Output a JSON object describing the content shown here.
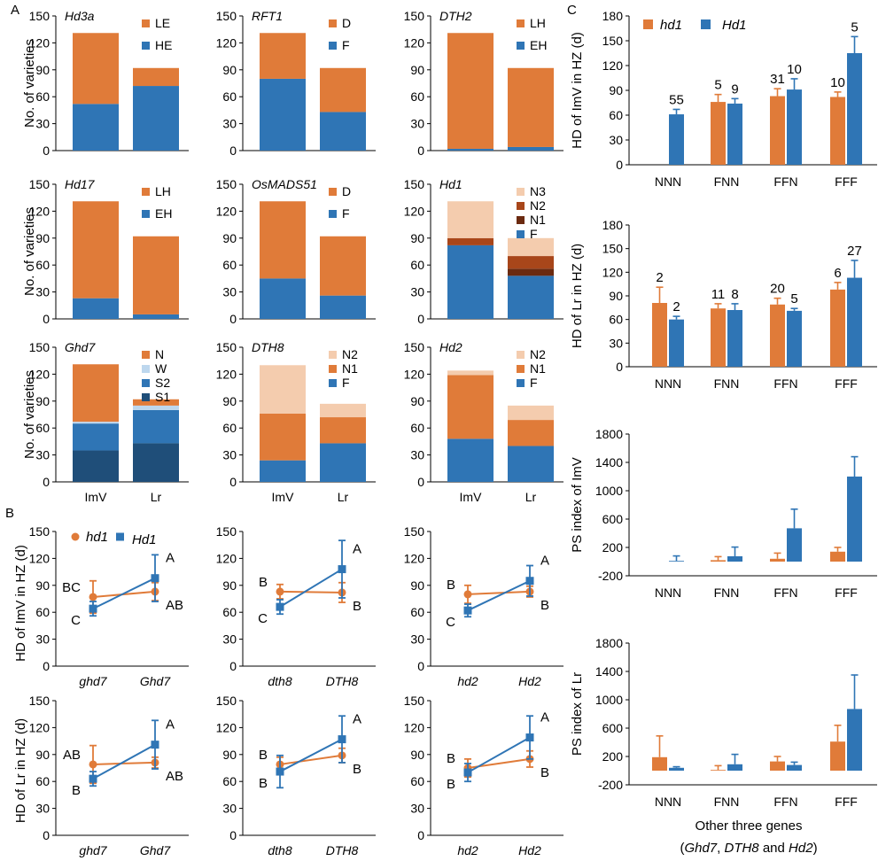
{
  "figure": {
    "panel_labels": [
      "A",
      "B",
      "C"
    ],
    "ylabels": {
      "A": "No. of varieties",
      "B_top": "HD of ImV in HZ (d)",
      "B_bottom": "HD of Lr in HZ (d)",
      "C1": "HD of ImV in HZ (d)",
      "C2": "HD of Lr in HZ (d)",
      "C3": "PS index of ImV",
      "C4": "PS index of Lr"
    },
    "C_xlabel": "Other three genes",
    "C_xlabel_sub": "(Ghd7, DTH8 and Hd2)",
    "colors": {
      "orange": "#E07B39",
      "blue": "#2F75B5",
      "light_peach": "#F4CCAE",
      "dark_brown_red": "#A8461A",
      "very_dark_brown": "#6B2A10",
      "light_blue": "#BDD7EE",
      "dark_navy": "#1F4E79"
    }
  },
  "chart_data": [
    {
      "id": "A-Hd3a",
      "type": "bar",
      "stacked": true,
      "title": "Hd3a",
      "categories": [
        "ImV",
        "Lr"
      ],
      "ylim": [
        0,
        150
      ],
      "yticks": [
        0,
        30,
        60,
        90,
        120,
        150
      ],
      "series": [
        {
          "name": "HE",
          "color": "#2F75B5",
          "values": [
            52,
            72
          ]
        },
        {
          "name": "LE",
          "color": "#E07B39",
          "values": [
            79,
            20
          ]
        }
      ]
    },
    {
      "id": "A-RFT1",
      "type": "bar",
      "stacked": true,
      "title": "RFT1",
      "categories": [
        "ImV",
        "Lr"
      ],
      "ylim": [
        0,
        150
      ],
      "yticks": [
        0,
        30,
        60,
        90,
        120,
        150
      ],
      "series": [
        {
          "name": "F",
          "color": "#2F75B5",
          "values": [
            80,
            43
          ]
        },
        {
          "name": "D",
          "color": "#E07B39",
          "values": [
            51,
            49
          ]
        }
      ]
    },
    {
      "id": "A-DTH2",
      "type": "bar",
      "stacked": true,
      "title": "DTH2",
      "categories": [
        "ImV",
        "Lr"
      ],
      "ylim": [
        0,
        150
      ],
      "yticks": [
        0,
        30,
        60,
        90,
        120,
        150
      ],
      "series": [
        {
          "name": "EH",
          "color": "#2F75B5",
          "values": [
            2,
            4
          ]
        },
        {
          "name": "LH",
          "color": "#E07B39",
          "values": [
            129,
            88
          ]
        }
      ]
    },
    {
      "id": "A-Hd17",
      "type": "bar",
      "stacked": true,
      "title": "Hd17",
      "categories": [
        "ImV",
        "Lr"
      ],
      "ylim": [
        0,
        150
      ],
      "yticks": [
        0,
        30,
        60,
        90,
        120,
        150
      ],
      "series": [
        {
          "name": "EH",
          "color": "#2F75B5",
          "values": [
            23,
            5
          ]
        },
        {
          "name": "LH",
          "color": "#E07B39",
          "values": [
            108,
            87
          ]
        }
      ]
    },
    {
      "id": "A-OsMADS51",
      "type": "bar",
      "stacked": true,
      "title": "OsMADS51",
      "categories": [
        "ImV",
        "Lr"
      ],
      "ylim": [
        0,
        150
      ],
      "yticks": [
        0,
        30,
        60,
        90,
        120,
        150
      ],
      "series": [
        {
          "name": "F",
          "color": "#2F75B5",
          "values": [
            45,
            26
          ]
        },
        {
          "name": "D",
          "color": "#E07B39",
          "values": [
            86,
            66
          ]
        }
      ]
    },
    {
      "id": "A-Hd1",
      "type": "bar",
      "stacked": true,
      "title": "Hd1",
      "categories": [
        "ImV",
        "Lr"
      ],
      "ylim": [
        0,
        150
      ],
      "yticks": [
        0,
        30,
        60,
        90,
        120,
        150
      ],
      "series": [
        {
          "name": "F",
          "color": "#2F75B5",
          "values": [
            82,
            48
          ]
        },
        {
          "name": "N1",
          "color": "#6B2A10",
          "values": [
            0,
            8
          ]
        },
        {
          "name": "N2",
          "color": "#A8461A",
          "values": [
            8,
            14
          ]
        },
        {
          "name": "N3",
          "color": "#F4CCAE",
          "values": [
            41,
            20
          ]
        }
      ]
    },
    {
      "id": "A-Ghd7",
      "type": "bar",
      "stacked": true,
      "title": "Ghd7",
      "categories": [
        "ImV",
        "Lr"
      ],
      "ylim": [
        0,
        150
      ],
      "yticks": [
        0,
        30,
        60,
        90,
        120,
        150
      ],
      "series": [
        {
          "name": "S1",
          "color": "#1F4E79",
          "values": [
            35,
            43
          ]
        },
        {
          "name": "S2",
          "color": "#2F75B5",
          "values": [
            30,
            37
          ]
        },
        {
          "name": "W",
          "color": "#BDD7EE",
          "values": [
            2,
            5
          ]
        },
        {
          "name": "N",
          "color": "#E07B39",
          "values": [
            64,
            7
          ]
        }
      ]
    },
    {
      "id": "A-DTH8",
      "type": "bar",
      "stacked": true,
      "title": "DTH8",
      "categories": [
        "ImV",
        "Lr"
      ],
      "ylim": [
        0,
        150
      ],
      "yticks": [
        0,
        30,
        60,
        90,
        120,
        150
      ],
      "series": [
        {
          "name": "F",
          "color": "#2F75B5",
          "values": [
            24,
            43
          ]
        },
        {
          "name": "N1",
          "color": "#E07B39",
          "values": [
            52,
            29
          ]
        },
        {
          "name": "N2",
          "color": "#F4CCAE",
          "values": [
            54,
            15
          ]
        }
      ]
    },
    {
      "id": "A-Hd2",
      "type": "bar",
      "stacked": true,
      "title": "Hd2",
      "categories": [
        "ImV",
        "Lr"
      ],
      "ylim": [
        0,
        150
      ],
      "yticks": [
        0,
        30,
        60,
        90,
        120,
        150
      ],
      "series": [
        {
          "name": "F",
          "color": "#2F75B5",
          "values": [
            48,
            40
          ]
        },
        {
          "name": "N1",
          "color": "#E07B39",
          "values": [
            71,
            29
          ]
        },
        {
          "name": "N2",
          "color": "#F4CCAE",
          "values": [
            5,
            16
          ]
        }
      ]
    },
    {
      "id": "B-ghd7-ImV",
      "type": "line",
      "categories": [
        "ghd7",
        "Ghd7"
      ],
      "ylim": [
        0,
        150
      ],
      "yticks": [
        0,
        30,
        60,
        90,
        120,
        150
      ],
      "series": [
        {
          "name": "hd1",
          "color": "#E07B39",
          "marker": "circle",
          "values": [
            77,
            83
          ],
          "err": [
            18,
            10
          ],
          "letters": [
            "BC",
            "AB"
          ]
        },
        {
          "name": "Hd1",
          "color": "#2F75B5",
          "marker": "square",
          "values": [
            64,
            98
          ],
          "err": [
            8,
            26
          ],
          "letters": [
            "C",
            "A"
          ]
        }
      ]
    },
    {
      "id": "B-dth8-ImV",
      "type": "line",
      "categories": [
        "dth8",
        "DTH8"
      ],
      "ylim": [
        0,
        150
      ],
      "yticks": [
        0,
        30,
        60,
        90,
        120,
        150
      ],
      "series": [
        {
          "name": "hd1",
          "color": "#E07B39",
          "marker": "circle",
          "values": [
            83,
            82
          ],
          "err": [
            8,
            11
          ]
        },
        {
          "name": "Hd1",
          "color": "#2F75B5",
          "marker": "square",
          "values": [
            66,
            108
          ],
          "err": [
            8,
            32
          ]
        }
      ],
      "letters": {
        "hd1": [
          "B",
          "B"
        ],
        "Hd1": [
          "C",
          "A"
        ]
      }
    },
    {
      "id": "B-hd2-ImV",
      "type": "line",
      "categories": [
        "hd2",
        "Hd2"
      ],
      "ylim": [
        0,
        150
      ],
      "yticks": [
        0,
        30,
        60,
        90,
        120,
        150
      ],
      "series": [
        {
          "name": "hd1",
          "color": "#E07B39",
          "marker": "circle",
          "values": [
            80,
            83
          ],
          "err": [
            10,
            6
          ]
        },
        {
          "name": "Hd1",
          "color": "#2F75B5",
          "marker": "square",
          "values": [
            62,
            95
          ],
          "err": [
            7,
            17
          ]
        }
      ],
      "letters": {
        "hd1": [
          "B",
          "B"
        ],
        "Hd1": [
          "C",
          "A"
        ]
      }
    },
    {
      "id": "B-ghd7-Lr",
      "type": "line",
      "categories": [
        "ghd7",
        "Ghd7"
      ],
      "ylim": [
        0,
        150
      ],
      "yticks": [
        0,
        30,
        60,
        90,
        120,
        150
      ],
      "series": [
        {
          "name": "hd1",
          "color": "#E07B39",
          "marker": "circle",
          "values": [
            79,
            81
          ],
          "err": [
            21,
            6
          ]
        },
        {
          "name": "Hd1",
          "color": "#2F75B5",
          "marker": "square",
          "values": [
            63,
            101
          ],
          "err": [
            8,
            27
          ]
        }
      ],
      "letters": {
        "hd1": [
          "AB",
          "AB"
        ],
        "Hd1": [
          "B",
          "A"
        ]
      }
    },
    {
      "id": "B-dth8-Lr",
      "type": "line",
      "categories": [
        "dth8",
        "DTH8"
      ],
      "ylim": [
        0,
        150
      ],
      "yticks": [
        0,
        30,
        60,
        90,
        120,
        150
      ],
      "series": [
        {
          "name": "hd1",
          "color": "#E07B39",
          "marker": "circle",
          "values": [
            79,
            89
          ],
          "err": [
            8,
            8
          ]
        },
        {
          "name": "Hd1",
          "color": "#2F75B5",
          "marker": "square",
          "values": [
            71,
            107
          ],
          "err": [
            18,
            26
          ]
        }
      ],
      "letters": {
        "hd1": [
          "B",
          "B"
        ],
        "Hd1": [
          "B",
          "A"
        ]
      }
    },
    {
      "id": "B-hd2-Lr",
      "type": "line",
      "categories": [
        "hd2",
        "Hd2"
      ],
      "ylim": [
        0,
        150
      ],
      "yticks": [
        0,
        30,
        60,
        90,
        120,
        150
      ],
      "series": [
        {
          "name": "hd1",
          "color": "#E07B39",
          "marker": "circle",
          "values": [
            75,
            85
          ],
          "err": [
            10,
            9
          ]
        },
        {
          "name": "Hd1",
          "color": "#2F75B5",
          "marker": "square",
          "values": [
            70,
            109
          ],
          "err": [
            10,
            24
          ]
        }
      ],
      "letters": {
        "hd1": [
          "B",
          "B"
        ],
        "Hd1": [
          "B",
          "A"
        ]
      }
    },
    {
      "id": "C-HD-ImV",
      "type": "bar",
      "categories": [
        "NNN",
        "FNN",
        "FFN",
        "FFF"
      ],
      "ylim": [
        0,
        180
      ],
      "yticks": [
        0,
        30,
        60,
        90,
        120,
        150,
        180
      ],
      "series": [
        {
          "name": "hd1",
          "color": "#E07B39",
          "values": [
            null,
            76,
            83,
            82
          ],
          "err": [
            0,
            9,
            9,
            6
          ],
          "n": [
            "",
            "5",
            "31",
            "10"
          ]
        },
        {
          "name": "Hd1",
          "color": "#2F75B5",
          "values": [
            61,
            74,
            91,
            135
          ],
          "err": [
            6,
            6,
            13,
            20
          ],
          "n": [
            "55",
            "9",
            "10",
            "5"
          ]
        }
      ]
    },
    {
      "id": "C-HD-Lr",
      "type": "bar",
      "categories": [
        "NNN",
        "FNN",
        "FFN",
        "FFF"
      ],
      "ylim": [
        0,
        180
      ],
      "yticks": [
        0,
        30,
        60,
        90,
        120,
        150,
        180
      ],
      "series": [
        {
          "name": "hd1",
          "color": "#E07B39",
          "values": [
            81,
            74,
            79,
            98
          ],
          "err": [
            20,
            6,
            8,
            9
          ],
          "n": [
            "2",
            "11",
            "20",
            "6"
          ]
        },
        {
          "name": "Hd1",
          "color": "#2F75B5",
          "values": [
            60,
            72,
            71,
            113
          ],
          "err": [
            4,
            8,
            3,
            22
          ],
          "n": [
            "2",
            "8",
            "5",
            "27"
          ]
        }
      ]
    },
    {
      "id": "C-PS-ImV",
      "type": "bar",
      "categories": [
        "NNN",
        "FNN",
        "FFN",
        "FFF"
      ],
      "ylim": [
        -200,
        1800
      ],
      "yticks": [
        -200,
        200,
        600,
        1000,
        1400,
        1800
      ],
      "series": [
        {
          "name": "hd1",
          "color": "#E07B39",
          "values": [
            null,
            20,
            40,
            140
          ],
          "err": [
            0,
            50,
            80,
            60
          ]
        },
        {
          "name": "Hd1",
          "color": "#2F75B5",
          "values": [
            10,
            75,
            470,
            1200
          ],
          "err": [
            70,
            130,
            270,
            280
          ]
        }
      ]
    },
    {
      "id": "C-PS-Lr",
      "type": "bar",
      "categories": [
        "NNN",
        "FNN",
        "FFN",
        "FFF"
      ],
      "ylim": [
        -200,
        1800
      ],
      "yticks": [
        -200,
        200,
        600,
        1000,
        1400,
        1800
      ],
      "series": [
        {
          "name": "hd1",
          "color": "#E07B39",
          "values": [
            190,
            10,
            130,
            410
          ],
          "err": [
            300,
            60,
            70,
            230
          ]
        },
        {
          "name": "Hd1",
          "color": "#2F75B5",
          "values": [
            40,
            90,
            80,
            870
          ],
          "err": [
            15,
            140,
            40,
            480
          ]
        }
      ]
    }
  ]
}
